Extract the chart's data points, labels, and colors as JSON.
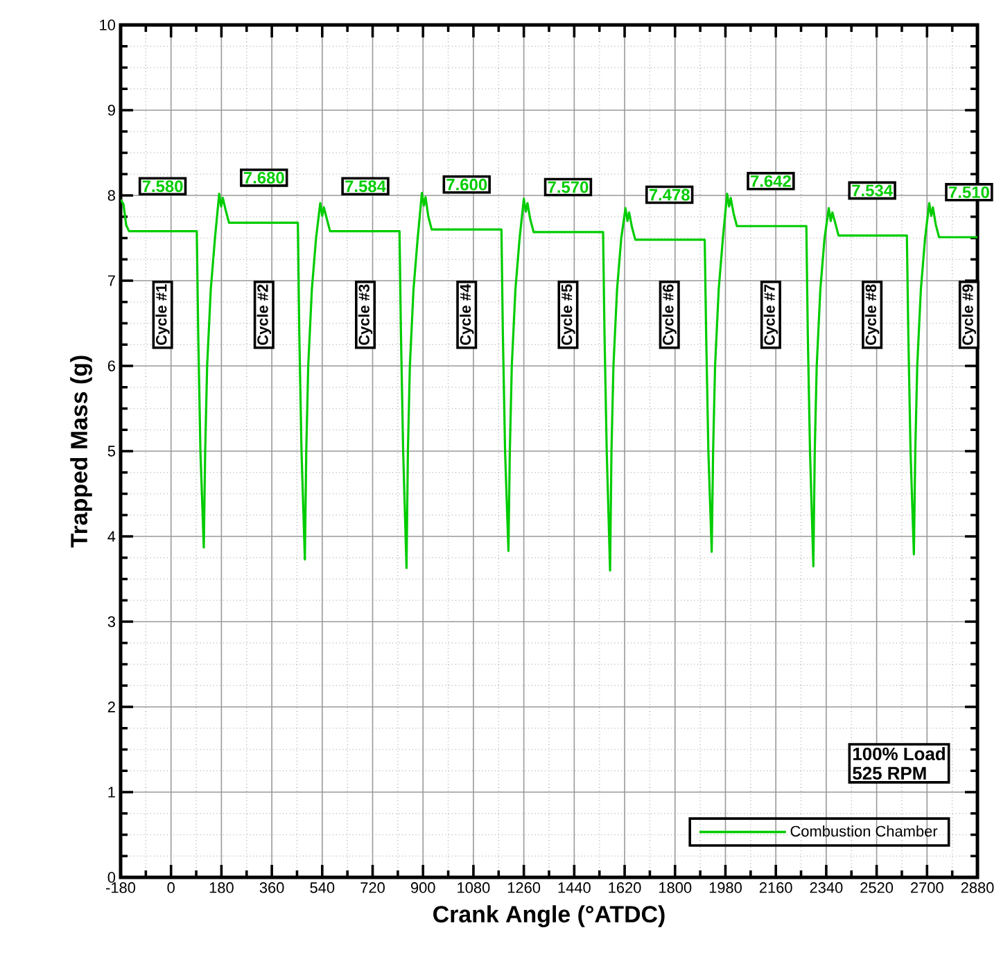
{
  "chart_data": {
    "type": "line",
    "xlabel": "Crank Angle (°ATDC)",
    "ylabel": "Trapped Mass (g)",
    "xlim": [
      -180,
      2880
    ],
    "ylim": [
      0,
      10
    ],
    "xticks": [
      -180,
      0,
      180,
      360,
      540,
      720,
      900,
      1080,
      1260,
      1440,
      1620,
      1800,
      1980,
      2160,
      2340,
      2520,
      2700,
      2880
    ],
    "yticks": [
      0,
      1,
      2,
      3,
      4,
      5,
      6,
      7,
      8,
      9,
      10
    ],
    "grid": true,
    "legend": "bottom right",
    "series": [
      {
        "name": "Combustion Chamber",
        "color": "#00cc00",
        "x": [
          -180,
          -170,
          -160,
          -150,
          92,
          97,
          105,
          117,
          122,
          129,
          142,
          157,
          172,
          179,
          185,
          195,
          207,
          453,
          458,
          466,
          478,
          483,
          490,
          503,
          518,
          533,
          540,
          546,
          556,
          568,
          816,
          821,
          829,
          841,
          846,
          853,
          866,
          881,
          896,
          903,
          909,
          919,
          931,
          1180,
          1185,
          1193,
          1205,
          1210,
          1217,
          1230,
          1245,
          1260,
          1267,
          1273,
          1283,
          1295,
          1543,
          1548,
          1556,
          1568,
          1573,
          1580,
          1593,
          1608,
          1623,
          1630,
          1636,
          1646,
          1658,
          1906,
          1911,
          1919,
          1931,
          1936,
          1943,
          1956,
          1971,
          1986,
          1993,
          1999,
          2009,
          2021,
          2269,
          2274,
          2282,
          2294,
          2299,
          2306,
          2319,
          2334,
          2349,
          2356,
          2362,
          2372,
          2384,
          2628,
          2633,
          2641,
          2653,
          2658,
          2665,
          2678,
          2693,
          2708,
          2715,
          2721,
          2731,
          2743,
          2880
        ],
        "values": [
          7.95,
          7.9,
          7.65,
          7.58,
          7.58,
          6.4,
          5.0,
          3.87,
          5.0,
          6.0,
          6.9,
          7.5,
          8.02,
          7.87,
          7.97,
          7.83,
          7.68,
          7.68,
          6.4,
          5.0,
          3.73,
          5.0,
          6.0,
          6.9,
          7.5,
          7.91,
          7.76,
          7.86,
          7.73,
          7.58,
          7.58,
          6.4,
          5.0,
          3.63,
          5.0,
          6.0,
          6.9,
          7.5,
          8.03,
          7.88,
          7.98,
          7.75,
          7.6,
          7.6,
          6.4,
          5.0,
          3.83,
          5.0,
          6.0,
          6.9,
          7.5,
          7.96,
          7.81,
          7.91,
          7.72,
          7.57,
          7.57,
          6.4,
          5.0,
          3.6,
          5.0,
          6.0,
          6.9,
          7.5,
          7.85,
          7.7,
          7.8,
          7.63,
          7.48,
          7.48,
          6.4,
          5.0,
          3.82,
          5.0,
          6.0,
          6.9,
          7.5,
          8.02,
          7.87,
          7.97,
          7.79,
          7.64,
          7.64,
          6.4,
          5.0,
          3.65,
          5.0,
          6.0,
          6.9,
          7.5,
          7.85,
          7.7,
          7.8,
          7.68,
          7.53,
          7.53,
          6.4,
          5.0,
          3.79,
          5.0,
          6.0,
          6.9,
          7.5,
          7.91,
          7.76,
          7.86,
          7.66,
          7.51,
          7.51
        ]
      }
    ],
    "annotations": [
      {
        "text": "7.580",
        "x": -30,
        "y": 7.58
      },
      {
        "text": "7.680",
        "x": 332,
        "y": 7.68
      },
      {
        "text": "7.584",
        "x": 694,
        "y": 7.58
      },
      {
        "text": "7.600",
        "x": 1056,
        "y": 7.6
      },
      {
        "text": "7.570",
        "x": 1418,
        "y": 7.57
      },
      {
        "text": "7.478",
        "x": 1780,
        "y": 7.48
      },
      {
        "text": "7.642",
        "x": 2142,
        "y": 7.64
      },
      {
        "text": "7.534",
        "x": 2504,
        "y": 7.53
      },
      {
        "text": "7.510",
        "x": 2850,
        "y": 7.51
      },
      "Cycle #1",
      "Cycle #2",
      "Cycle #3",
      "Cycle #4",
      "Cycle #5",
      "Cycle #6",
      "Cycle #7",
      "Cycle #8",
      "Cycle #9",
      "100% Load",
      "525 RPM"
    ]
  }
}
